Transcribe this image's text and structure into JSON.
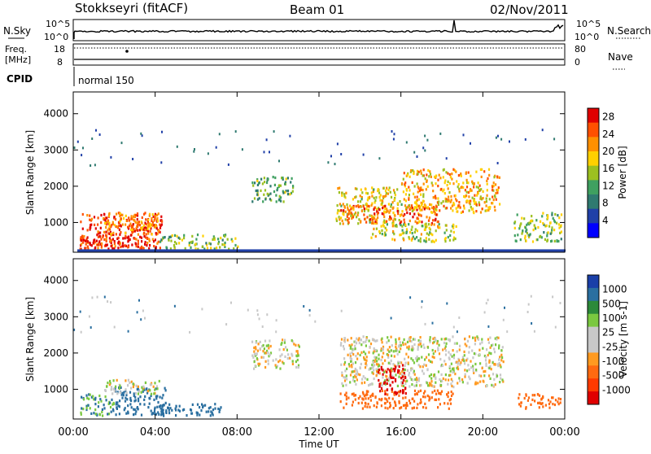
{
  "header": {
    "station": "Stokkseyri (fitACF)",
    "beam": "Beam 01",
    "date": "02/Nov/2011"
  },
  "top_panels": {
    "nsky_label": "N.Sky",
    "nsky_ticks": [
      "10^5",
      "10^0"
    ],
    "nsearch_label": "N.Search",
    "nsearch_ticks": [
      "10^5",
      "10^0"
    ],
    "freq_label": "Freq.",
    "freq_unit": "[MHz]",
    "freq_ticks": [
      "18",
      "8"
    ],
    "nave_label": "Nave",
    "nave_ticks": [
      "80",
      "0"
    ],
    "cpid_label": "CPID",
    "cpid_value": "normal 150"
  },
  "colors": {
    "power_scale": [
      "#0000ff",
      "#2040a8",
      "#2f7a70",
      "#3fa060",
      "#9cc020",
      "#ffd000",
      "#ff9000",
      "#ff5000",
      "#e00000"
    ],
    "velocity_scale": [
      "#1a3fa8",
      "#2a6fa0",
      "#2c8a3a",
      "#7ac840",
      "#c8c8c8",
      "#c8c8c8",
      "#ff9a20",
      "#ff6a10",
      "#ff3a00",
      "#e00000"
    ]
  },
  "chart_data": [
    {
      "type": "heatmap",
      "title": "",
      "xlabel": "Time UT",
      "ylabel": "Slant Range [km]",
      "xticks": [
        "00:00",
        "04:00",
        "08:00",
        "12:00",
        "16:00",
        "20:00",
        "00:00"
      ],
      "yticks": [
        "1000",
        "2000",
        "3000",
        "4000"
      ],
      "xlim": [
        0,
        24
      ],
      "ylim": [
        180,
        4600
      ],
      "colorbar": {
        "label": "Power [dB]",
        "ticks": [
          "4",
          "8",
          "12",
          "16",
          "20",
          "24",
          "28"
        ],
        "range": [
          0,
          30
        ]
      },
      "regions": [
        {
          "t0": 0.3,
          "t1": 4.3,
          "r0": 300,
          "r1": 1300,
          "level": 26
        },
        {
          "t0": 0.3,
          "t1": 3.5,
          "r0": 300,
          "r1": 700,
          "level": 28
        },
        {
          "t0": 1.5,
          "t1": 4.2,
          "r0": 700,
          "r1": 1300,
          "level": 22
        },
        {
          "t0": 4.2,
          "t1": 8.0,
          "r0": 300,
          "r1": 700,
          "level": 14
        },
        {
          "t0": 8.7,
          "t1": 10.7,
          "r0": 1600,
          "r1": 2300,
          "level": 12
        },
        {
          "t0": 12.8,
          "t1": 16.0,
          "r0": 1000,
          "r1": 2000,
          "level": 18
        },
        {
          "t0": 13.0,
          "t1": 17.8,
          "r0": 1000,
          "r1": 1500,
          "level": 24
        },
        {
          "t0": 14.5,
          "t1": 18.7,
          "r0": 500,
          "r1": 1000,
          "level": 16
        },
        {
          "t0": 16.0,
          "t1": 20.8,
          "r0": 1300,
          "r1": 2500,
          "level": 20
        },
        {
          "t0": 21.5,
          "t1": 23.8,
          "r0": 500,
          "r1": 1300,
          "level": 14
        }
      ]
    },
    {
      "type": "heatmap",
      "title": "",
      "xlabel": "Time UT",
      "ylabel": "Slant Range [km]",
      "xticks": [
        "00:00",
        "04:00",
        "08:00",
        "12:00",
        "16:00",
        "20:00",
        "00:00"
      ],
      "yticks": [
        "1000",
        "2000",
        "3000",
        "4000"
      ],
      "xlim": [
        0,
        24
      ],
      "ylim": [
        180,
        4600
      ],
      "colorbar": {
        "label": "Velocity [m s-1]",
        "ticks": [
          "1000",
          "500",
          "100",
          "25",
          "-25",
          "-100",
          "-500",
          "-1000"
        ],
        "range": [
          -1000,
          1000
        ]
      },
      "regions": [
        {
          "t0": 0.3,
          "t1": 2.0,
          "r0": 300,
          "r1": 900,
          "level": 100
        },
        {
          "t0": 2.0,
          "t1": 4.5,
          "r0": 300,
          "r1": 1100,
          "level": 300
        },
        {
          "t0": 1.5,
          "t1": 4.2,
          "r0": 900,
          "r1": 1300,
          "level": 0
        },
        {
          "t0": 4.2,
          "t1": 7.2,
          "r0": 300,
          "r1": 650,
          "level": 200
        },
        {
          "t0": 8.7,
          "t1": 11.0,
          "r0": 1600,
          "r1": 2400,
          "level": 0
        },
        {
          "t0": 13.0,
          "t1": 21.0,
          "r0": 1100,
          "r1": 2500,
          "level": 0
        },
        {
          "t0": 13.0,
          "t1": 18.5,
          "r0": 500,
          "r1": 1000,
          "level": -300
        },
        {
          "t0": 14.8,
          "t1": 16.2,
          "r0": 900,
          "r1": 1700,
          "level": -900
        },
        {
          "t0": 21.7,
          "t1": 23.8,
          "r0": 500,
          "r1": 900,
          "level": -300
        }
      ]
    }
  ]
}
